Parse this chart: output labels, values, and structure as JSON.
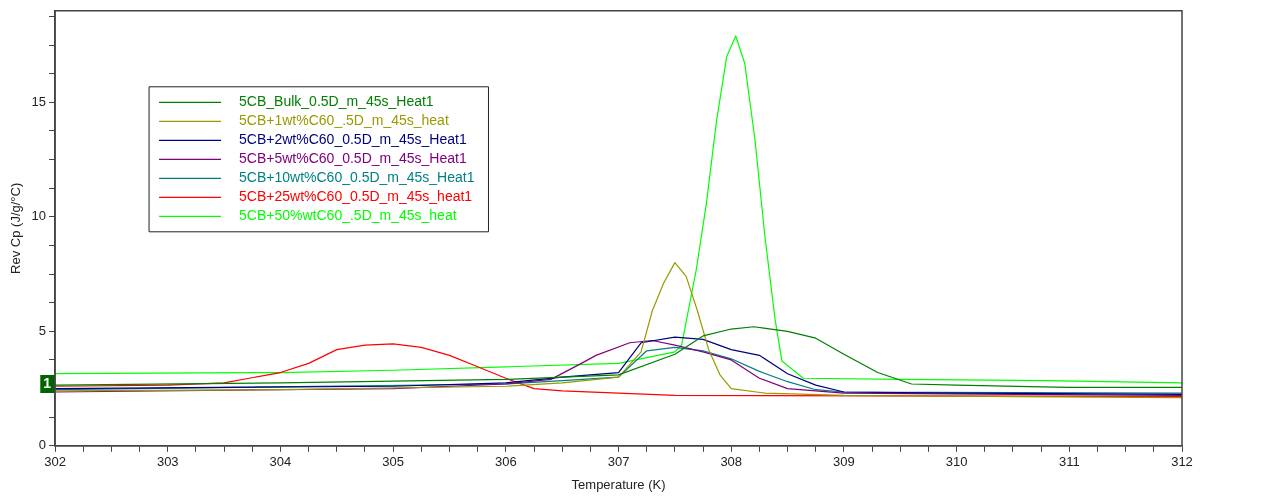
{
  "chart_data": {
    "type": "line",
    "xlabel": "Temperature (K)",
    "ylabel": "Rev Cp (J/g/°C)",
    "xlim": [
      302,
      312
    ],
    "xticks": [
      302,
      {
        "value": 302.25,
        "label": null
      },
      {
        "value": 302.5,
        "label": null
      },
      {
        "value": 302.75,
        "label": null
      },
      303,
      {
        "value": 303.25,
        "label": null
      },
      {
        "value": 303.5,
        "label": null
      },
      {
        "value": 303.75,
        "label": null
      },
      304,
      {
        "value": 304.25,
        "label": null
      },
      {
        "value": 304.5,
        "label": null
      },
      {
        "value": 304.75,
        "label": null
      },
      305,
      {
        "value": 305.25,
        "label": null
      },
      {
        "value": 305.5,
        "label": null
      },
      {
        "value": 305.75,
        "label": null
      },
      306,
      {
        "value": 306.25,
        "label": null
      },
      {
        "value": 306.5,
        "label": null
      },
      {
        "value": 306.75,
        "label": null
      },
      307,
      {
        "value": 307.25,
        "label": null
      },
      {
        "value": 307.5,
        "label": null
      },
      {
        "value": 307.75,
        "label": null
      },
      308,
      {
        "value": 308.25,
        "label": null
      },
      {
        "value": 308.5,
        "label": null
      },
      {
        "value": 308.75,
        "label": null
      },
      309,
      {
        "value": 309.25,
        "label": null
      },
      {
        "value": 309.5,
        "label": null
      },
      {
        "value": 309.75,
        "label": null
      },
      310,
      {
        "value": 310.25,
        "label": null
      },
      {
        "value": 310.5,
        "label": null
      },
      {
        "value": 310.75,
        "label": null
      },
      311,
      {
        "value": 311.25,
        "label": null
      },
      {
        "value": 311.5,
        "label": null
      },
      {
        "value": 311.75,
        "label": null
      },
      312
    ],
    "ylim": [
      0,
      19
    ],
    "yticks": [
      0,
      {
        "value": 1.25,
        "label": null
      },
      {
        "value": 2.5,
        "label": null
      },
      {
        "value": 3.75,
        "label": null
      },
      5,
      {
        "value": 6.25,
        "label": null
      },
      {
        "value": 7.5,
        "label": null
      },
      {
        "value": 8.75,
        "label": null
      },
      10,
      {
        "value": 11.25,
        "label": null
      },
      {
        "value": 12.5,
        "label": null
      },
      {
        "value": 13.75,
        "label": null
      },
      15,
      {
        "value": 16.25,
        "label": null
      },
      {
        "value": 17.5,
        "label": null
      },
      {
        "value": 18.75,
        "label": null
      }
    ],
    "grid": false,
    "legend": "top left",
    "marker": "none",
    "line_style": "solid",
    "annotations": [
      {
        "text": "1",
        "x": 302,
        "y": 2.7
      }
    ],
    "series": [
      {
        "name": "5CB_Bulk_0.5D_m_45s_Heat1",
        "color": "#008000",
        "x": [
          302,
          304,
          306,
          307,
          307.5,
          307.75,
          308,
          308.2,
          308.5,
          308.75,
          309,
          309.3,
          309.6,
          310,
          311,
          312
        ],
        "values": [
          2.65,
          2.75,
          2.9,
          3.1,
          4.0,
          4.8,
          5.1,
          5.2,
          5.0,
          4.7,
          4.0,
          3.2,
          2.7,
          2.65,
          2.55,
          2.55
        ]
      },
      {
        "name": "5CB+1wt%C60_.5D_m_45s_heat",
        "color": "#999900",
        "x": [
          302,
          304,
          306,
          306.5,
          307,
          307.2,
          307.3,
          307.4,
          307.5,
          307.6,
          307.7,
          307.8,
          307.9,
          308,
          308.3,
          309,
          312
        ],
        "values": [
          2.4,
          2.45,
          2.6,
          2.75,
          3.0,
          4.1,
          5.9,
          7.1,
          8.0,
          7.4,
          5.9,
          4.2,
          3.1,
          2.5,
          2.3,
          2.2,
          2.1
        ]
      },
      {
        "name": "5CB+2wt%C60_0.5D_m_45s_Heat1",
        "color": "#000080",
        "x": [
          302,
          305,
          306,
          306.5,
          307,
          307.2,
          307.5,
          307.75,
          308,
          308.25,
          308.5,
          308.75,
          309,
          310,
          312
        ],
        "values": [
          2.5,
          2.6,
          2.75,
          3.0,
          3.2,
          4.5,
          4.75,
          4.65,
          4.2,
          3.95,
          3.15,
          2.65,
          2.35,
          2.3,
          2.25
        ]
      },
      {
        "name": "5CB+5wt%C60_0.5D_m_45s_Heat1",
        "color": "#800080",
        "x": [
          302,
          305,
          306,
          306.4,
          306.67,
          306.8,
          307.1,
          307.3,
          307.5,
          307.75,
          308,
          308.25,
          308.5,
          309,
          312
        ],
        "values": [
          2.35,
          2.5,
          2.7,
          2.9,
          3.6,
          3.95,
          4.5,
          4.6,
          4.4,
          4.1,
          3.75,
          2.95,
          2.5,
          2.3,
          2.2
        ]
      },
      {
        "name": "5CB+10wt%C60_0.5D_m_45s_Heat1",
        "color": "#008080",
        "x": [
          302,
          306,
          306.5,
          307,
          307.25,
          307.5,
          307.75,
          308,
          308.25,
          308.5,
          308.75,
          309,
          312
        ],
        "values": [
          2.45,
          2.7,
          2.85,
          3.0,
          4.15,
          4.3,
          4.15,
          3.8,
          3.25,
          2.8,
          2.45,
          2.35,
          2.3
        ]
      },
      {
        "name": "5CB+25wt%C60_0.5D_m_45s_heat1",
        "color": "#ff0000",
        "x": [
          302,
          303,
          303.5,
          304,
          304.25,
          304.5,
          304.75,
          305,
          305.25,
          305.5,
          305.75,
          306,
          306.25,
          306.5,
          307,
          307.5,
          312
        ],
        "values": [
          2.6,
          2.65,
          2.75,
          3.2,
          3.6,
          4.2,
          4.4,
          4.45,
          4.3,
          3.95,
          3.45,
          2.95,
          2.5,
          2.4,
          2.3,
          2.2,
          2.15
        ]
      },
      {
        "name": "5CB+50%wtC60_.5D_m_45s_heat",
        "color": "#00ff00",
        "x": [
          302,
          304,
          305,
          306,
          307,
          307.5,
          307.56,
          307.69,
          307.78,
          307.87,
          307.96,
          308.04,
          308.12,
          308.21,
          308.3,
          308.39,
          308.45,
          308.64,
          309.5,
          310.8,
          312
        ],
        "values": [
          3.15,
          3.2,
          3.3,
          3.45,
          3.6,
          4.1,
          4.4,
          7.7,
          10.6,
          14.2,
          17.0,
          17.9,
          16.7,
          13.4,
          9.1,
          5.5,
          3.7,
          2.95,
          2.9,
          2.85,
          2.75
        ]
      }
    ]
  }
}
